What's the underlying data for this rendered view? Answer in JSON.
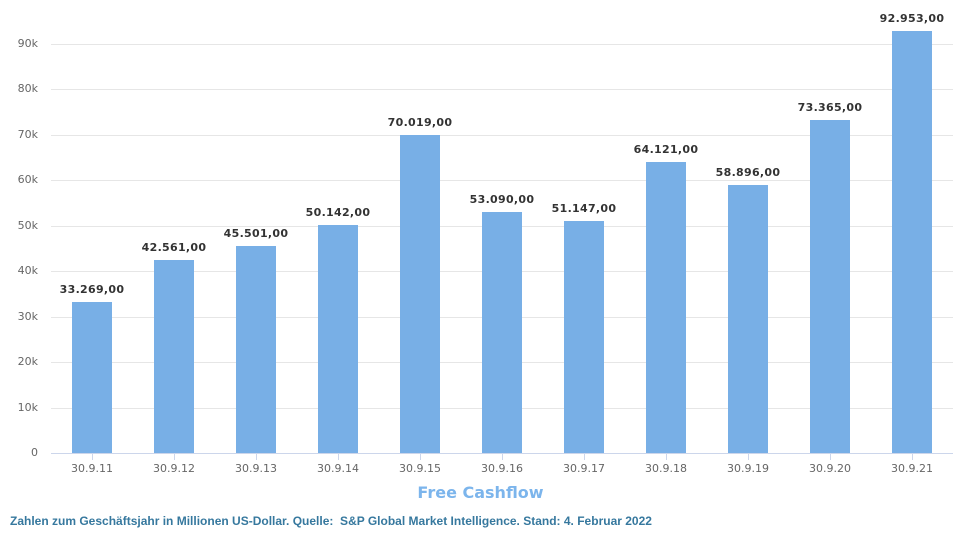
{
  "chart_data": {
    "type": "bar",
    "title": "",
    "xlabel": "",
    "ylabel": "",
    "categories": [
      "30.9.11",
      "30.9.12",
      "30.9.13",
      "30.9.14",
      "30.9.15",
      "30.9.16",
      "30.9.17",
      "30.9.18",
      "30.9.19",
      "30.9.20",
      "30.9.21"
    ],
    "series": [
      {
        "name": "Free Cashflow",
        "values": [
          33269,
          42561,
          45501,
          50142,
          70019,
          53090,
          51147,
          64121,
          58896,
          73365,
          92953
        ]
      }
    ],
    "value_labels": [
      "33.269,00",
      "42.561,00",
      "45.501,00",
      "50.142,00",
      "70.019,00",
      "53.090,00",
      "51.147,00",
      "64.121,00",
      "58.896,00",
      "73.365,00",
      "92.953,00"
    ],
    "ylim": [
      0,
      90000
    ],
    "ytick_step": 10000,
    "ytick_labels": [
      "0",
      "10k",
      "20k",
      "30k",
      "40k",
      "50k",
      "60k",
      "70k",
      "80k",
      "90k"
    ],
    "grid": true,
    "legend": {
      "label": "Free Cashflow",
      "position": "bottom",
      "color": "#7cb5ec"
    },
    "colors": {
      "bar": "#78afe6",
      "grid": "#e6e6e6",
      "axis": "#ccd6eb",
      "tick_label": "#666666",
      "value_label": "#333333"
    }
  },
  "footer": {
    "text": "Zahlen zum Geschäftsjahr in Millionen US-Dollar. Quelle:  S&P Global Market Intelligence. Stand: 4. Februar 2022",
    "color": "#36789e"
  }
}
